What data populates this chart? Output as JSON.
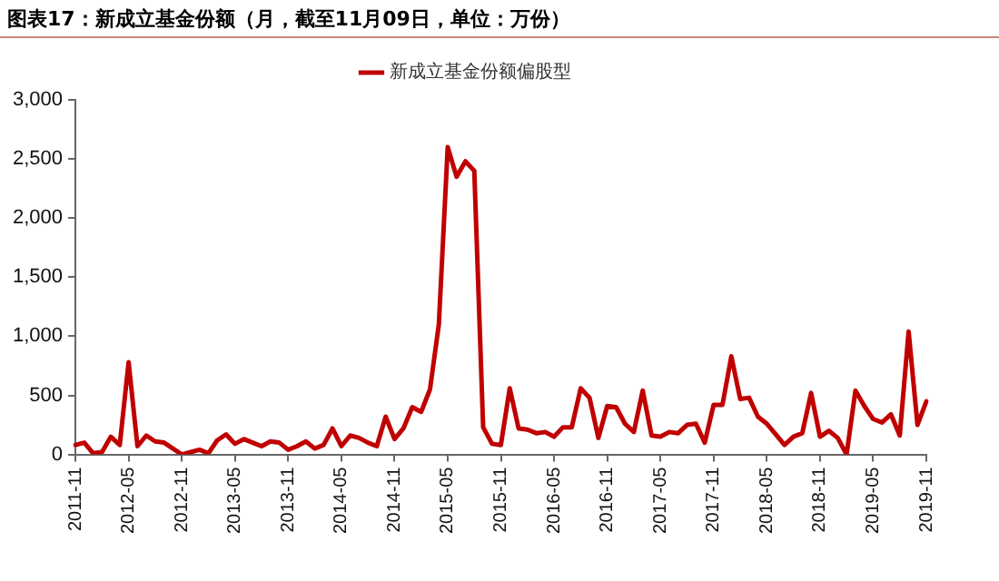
{
  "chart_data": {
    "type": "line",
    "title": "图表17：新成立基金份额（月，截至11月09日，单位：万份）",
    "categories": [
      "2011-11",
      null,
      null,
      null,
      null,
      null,
      "2012-05",
      null,
      null,
      null,
      null,
      null,
      "2012-11",
      null,
      null,
      null,
      null,
      null,
      "2013-05",
      null,
      null,
      null,
      null,
      null,
      "2013-11",
      null,
      null,
      null,
      null,
      null,
      "2014-05",
      null,
      null,
      null,
      null,
      null,
      "2014-11",
      null,
      null,
      null,
      null,
      null,
      "2015-05",
      null,
      null,
      null,
      null,
      null,
      "2015-11",
      null,
      null,
      null,
      null,
      null,
      "2016-05",
      null,
      null,
      null,
      null,
      null,
      "2016-11",
      null,
      null,
      null,
      null,
      null,
      "2017-05",
      null,
      null,
      null,
      null,
      null,
      "2017-11",
      null,
      null,
      null,
      null,
      null,
      "2018-05",
      null,
      null,
      null,
      null,
      null,
      "2018-11",
      null,
      null,
      null,
      null,
      null,
      "2019-05",
      null,
      null,
      null,
      null,
      null,
      "2019-11"
    ],
    "series": [
      {
        "name": "新成立基金份额偏股型",
        "color": "#c00000",
        "values": [
          80,
          100,
          10,
          20,
          150,
          80,
          780,
          70,
          160,
          110,
          100,
          50,
          0,
          20,
          40,
          10,
          120,
          170,
          90,
          130,
          100,
          70,
          110,
          100,
          40,
          70,
          110,
          50,
          80,
          220,
          70,
          160,
          140,
          100,
          70,
          320,
          130,
          220,
          400,
          360,
          550,
          1100,
          2600,
          2350,
          2480,
          2400,
          230,
          90,
          80,
          560,
          220,
          210,
          180,
          190,
          150,
          230,
          230,
          560,
          480,
          140,
          410,
          400,
          260,
          190,
          540,
          160,
          150,
          190,
          180,
          250,
          260,
          100,
          420,
          420,
          830,
          470,
          480,
          320,
          260,
          170,
          80,
          150,
          180,
          520,
          150,
          200,
          140,
          0,
          540,
          410,
          300,
          270,
          340,
          160,
          1040,
          250,
          450
        ]
      }
    ],
    "ylim": [
      0,
      3000
    ],
    "yticks": [
      {
        "value": 0,
        "label": "0"
      },
      {
        "value": 500,
        "label": "500"
      },
      {
        "value": 1000,
        "label": "1,000"
      },
      {
        "value": 1500,
        "label": "1,500"
      },
      {
        "value": 2000,
        "label": "2,000"
      },
      {
        "value": 2500,
        "label": "2,500"
      },
      {
        "value": 3000,
        "label": "3,000"
      }
    ],
    "grid": false,
    "legend": "top",
    "marker": "none",
    "line_style": "solid"
  }
}
